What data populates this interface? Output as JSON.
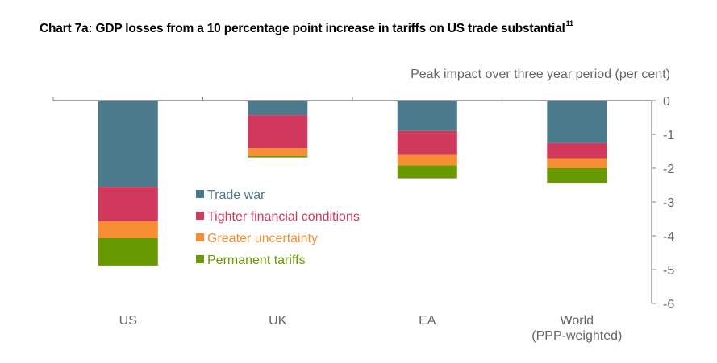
{
  "chart_data": {
    "type": "bar",
    "stacked": true,
    "title": "Chart 7a:  GDP losses from a 10 percentage point increase in tariffs on US trade substantial",
    "title_footnote": "11",
    "ylabel": "Peak impact over three year period (per cent)",
    "xlabel": "",
    "ylim": [
      -6,
      0
    ],
    "yticks": [
      0,
      -1,
      -2,
      -3,
      -4,
      -5,
      -6
    ],
    "ytick_labels": [
      "0",
      "-1",
      "-2",
      "-3",
      "-4",
      "-5",
      "-6"
    ],
    "y_axis_side": "right",
    "grid": false,
    "legend_position": "center-left",
    "categories": [
      [
        "US"
      ],
      [
        "UK"
      ],
      [
        "EA"
      ],
      [
        "World",
        "(PPP-weighted)"
      ]
    ],
    "series": [
      {
        "name": "Trade war",
        "color": "#4A7A8C",
        "values": [
          -2.55,
          -0.43,
          -0.9,
          -1.26
        ]
      },
      {
        "name": "Tighter financial conditions",
        "color": "#D0395B",
        "values": [
          -1.02,
          -0.98,
          -0.69,
          -0.45
        ]
      },
      {
        "name": "Greater uncertainty",
        "color": "#F58E34",
        "values": [
          -0.5,
          -0.23,
          -0.33,
          -0.29
        ]
      },
      {
        "name": "Permanent tariffs",
        "color": "#679A00",
        "values": [
          -0.81,
          -0.04,
          -0.38,
          -0.43
        ]
      }
    ]
  }
}
